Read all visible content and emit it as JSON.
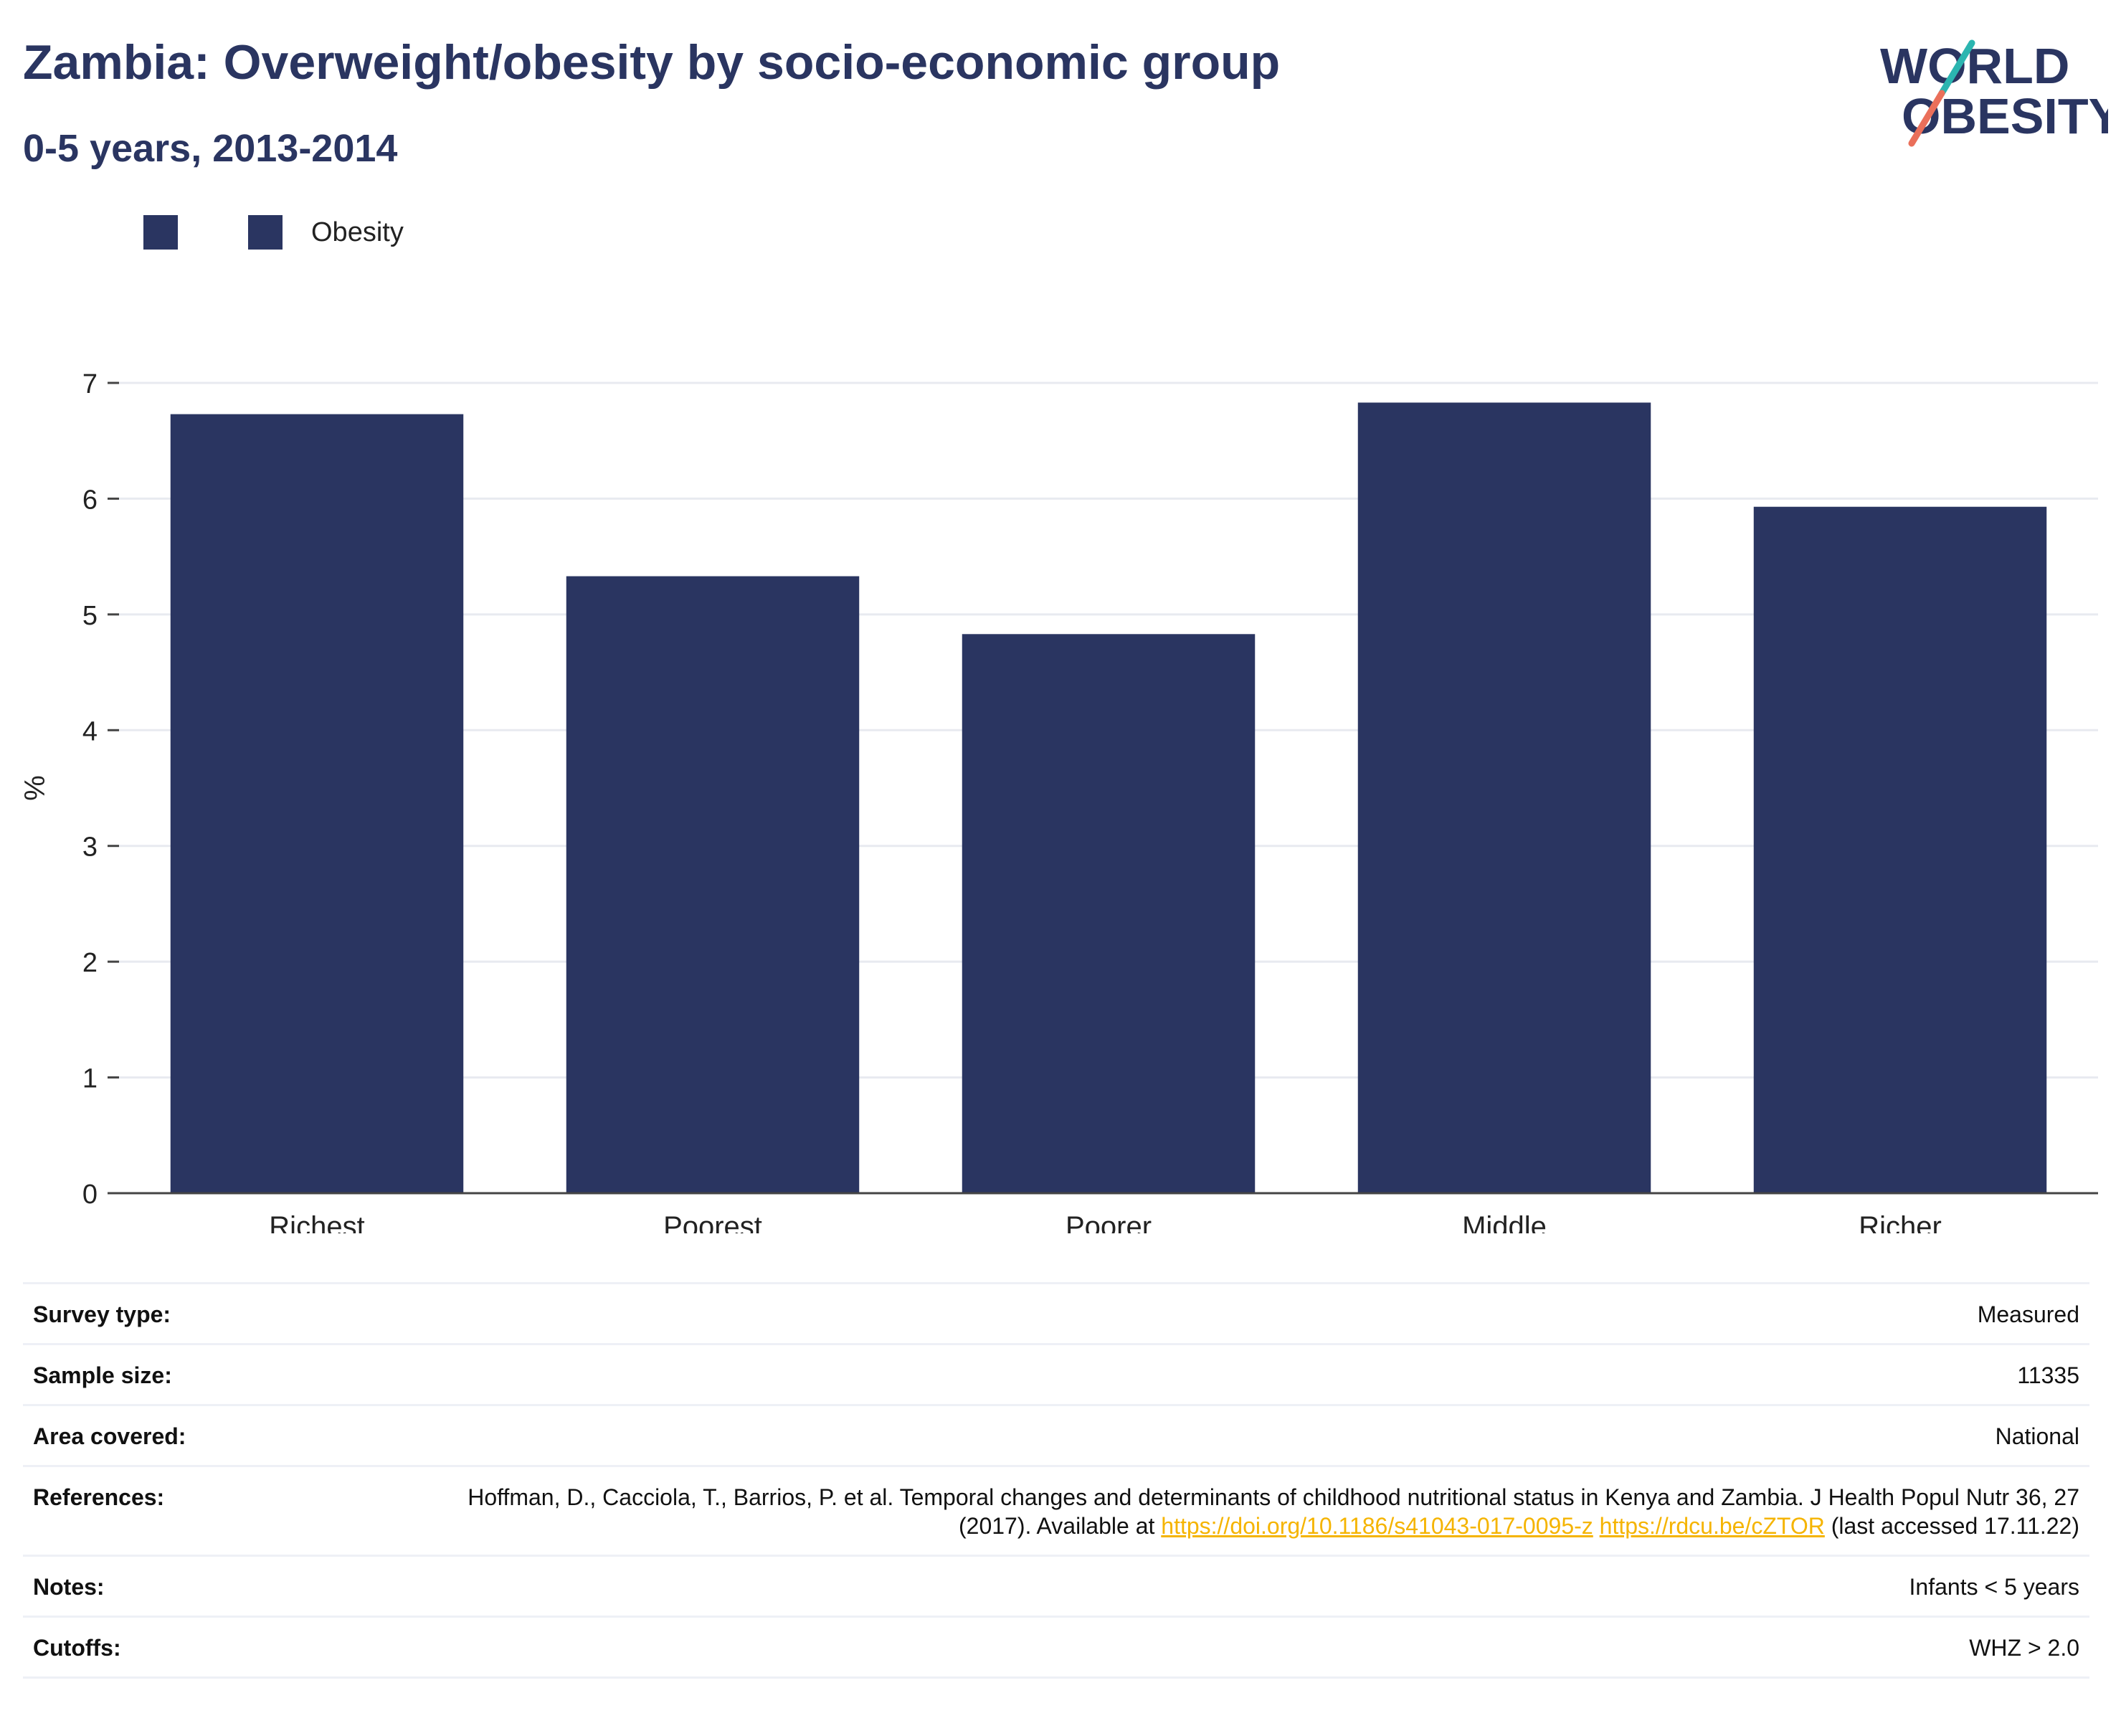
{
  "header": {
    "title": "Zambia: Overweight/obesity by socio-economic group",
    "subtitle": "0-5 years, 2013-2014",
    "logo_line1": "WORLD",
    "logo_line2": "OBESITY"
  },
  "legend": {
    "items": [
      {
        "label": "",
        "color": "#2a3561"
      },
      {
        "label": "Obesity",
        "color": "#2a3561"
      }
    ]
  },
  "chart_data": {
    "type": "bar",
    "categories": [
      "Richest",
      "Poorest",
      "Poorer",
      "Middle",
      "Richer"
    ],
    "series": [
      {
        "name": "Obesity",
        "values": [
          6.73,
          5.33,
          4.83,
          6.83,
          5.93
        ],
        "color": "#2a3561"
      }
    ],
    "ylabel": "%",
    "ylim": [
      0,
      7
    ],
    "yticks": [
      0,
      1,
      2,
      3,
      4,
      5,
      6,
      7
    ],
    "grid": true,
    "legend_position": "top-left"
  },
  "info": {
    "survey_type": {
      "label": "Survey type:",
      "value": "Measured"
    },
    "sample_size": {
      "label": "Sample size:",
      "value": "11335"
    },
    "area_covered": {
      "label": "Area covered:",
      "value": "National"
    },
    "references": {
      "label": "References:",
      "text_before": "Hoffman, D., Cacciola, T., Barrios, P. et al. Temporal changes and determinants of childhood nutritional status in Kenya and Zambia. J Health Popul Nutr 36, 27 (2017). Available at ",
      "link1": "https://doi.org/10.1186/s41043-017-0095-z",
      "link2": "https://rdcu.be/cZTOR",
      "text_after": " (last accessed 17.11.22)"
    },
    "notes": {
      "label": "Notes:",
      "value": "Infants < 5 years"
    },
    "cutoffs": {
      "label": "Cutoffs:",
      "value": "WHZ > 2.0"
    }
  },
  "colors": {
    "bar": "#2a3561",
    "title": "#2a3561",
    "grid": "#e8eaf0",
    "logo_teal": "#2bb5b0",
    "logo_coral": "#ea6f5a",
    "link": "#f5b400"
  }
}
